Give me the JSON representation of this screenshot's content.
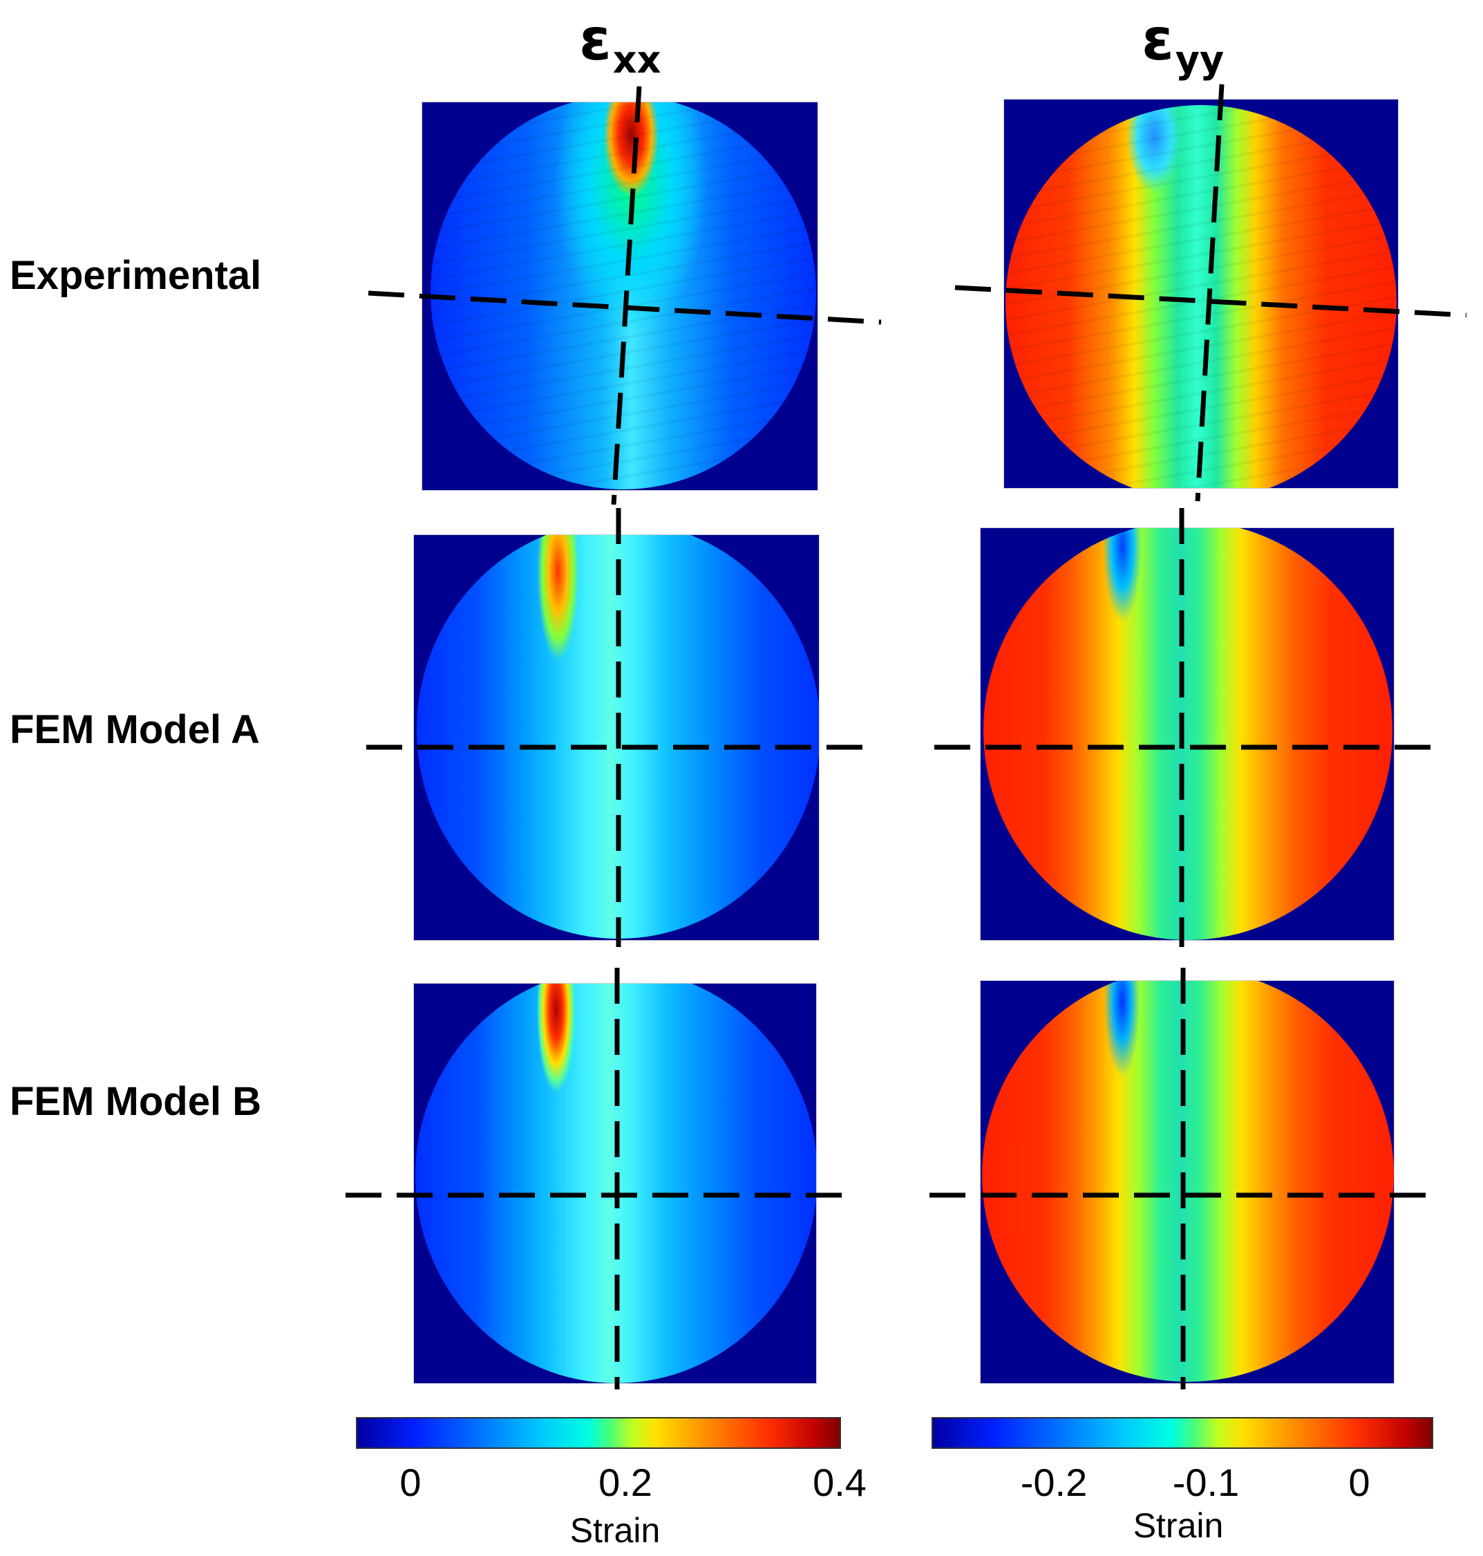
{
  "columns": [
    {
      "symbol": "ε",
      "subscript": "xx"
    },
    {
      "symbol": "ε",
      "subscript": "yy"
    }
  ],
  "rows": [
    {
      "label": "Experimental"
    },
    {
      "label": "FEM Model A"
    },
    {
      "label": "FEM Model B"
    }
  ],
  "colorbars": [
    {
      "title": "Strain",
      "ticks": [
        "0",
        "0.2",
        "0.4"
      ]
    },
    {
      "title": "Strain",
      "ticks": [
        "-0.2",
        "-0.1",
        "0"
      ]
    }
  ],
  "colors": {
    "background_field": "#00008f",
    "line": "#000000"
  }
}
